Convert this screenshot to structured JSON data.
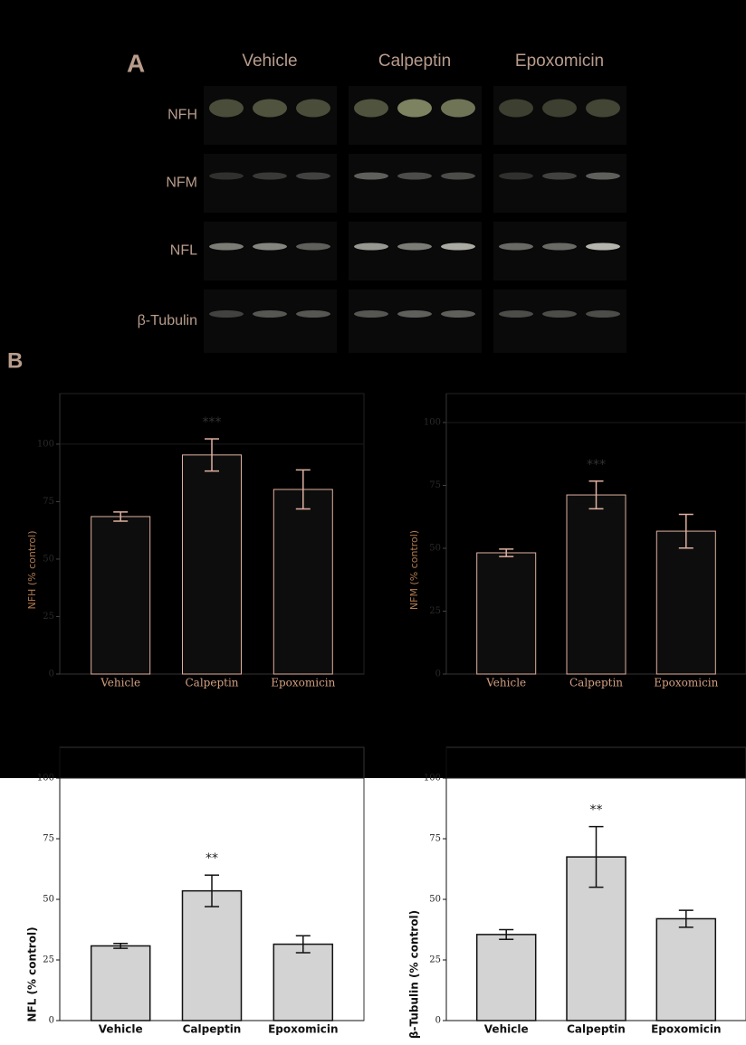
{
  "panel_a": {
    "label": "A",
    "conditions": [
      "Vehicle",
      "Calpeptin",
      "Epoxomicin"
    ],
    "rows": [
      "NFH",
      "NFM",
      "NFL",
      "β-Tubulin"
    ]
  },
  "panel_b_label": "B",
  "chart_data": [
    {
      "type": "bar",
      "ylabel": "NFH (% control)",
      "categories": [
        "Vehicle",
        "Calpeptin",
        "Epoxomicin"
      ],
      "values": [
        68.5,
        95.3,
        80.3
      ],
      "errors": [
        2,
        7,
        8.5
      ],
      "annotations": [
        {
          "text": "***",
          "category": "Calpeptin"
        }
      ],
      "ylim": [
        0,
        122
      ],
      "yticks": [
        0,
        25,
        50,
        75,
        100
      ],
      "reference_line": 100,
      "color": "#0d0d0d",
      "edge_color": "#e0b0a0"
    },
    {
      "type": "bar",
      "ylabel": "NFM (% control)",
      "categories": [
        "Vehicle",
        "Calpeptin",
        "Epoxomicin"
      ],
      "values": [
        48.2,
        71.2,
        56.8
      ],
      "errors": [
        1.5,
        5.5,
        6.7
      ],
      "annotations": [
        {
          "text": "***",
          "category": "Calpeptin"
        }
      ],
      "ylim": [
        0,
        111.5
      ],
      "yticks": [
        0,
        25,
        50,
        75,
        100
      ],
      "reference_line": 100,
      "color": "#0d0d0d",
      "edge_color": "#e0b0a0"
    },
    {
      "type": "bar",
      "ylabel": "NFL (% control)",
      "categories": [
        "Vehicle",
        "Calpeptin",
        "Epoxomicin"
      ],
      "values": [
        30.8,
        53.5,
        31.5
      ],
      "errors": [
        1,
        6.5,
        3.5
      ],
      "annotations": [
        {
          "text": "**",
          "category": "Calpeptin"
        }
      ],
      "ylim": [
        0,
        112.7
      ],
      "yticks": [
        0,
        25,
        50,
        75,
        100
      ],
      "reference_line": 100,
      "color": "#d3d3d3",
      "edge_color": "#111111"
    },
    {
      "type": "bar",
      "ylabel": "β-Tubulin (% control)",
      "categories": [
        "Vehicle",
        "Calpeptin",
        "Epoxomicin"
      ],
      "values": [
        35.5,
        67.5,
        42
      ],
      "errors": [
        2,
        12.5,
        3.5
      ],
      "annotations": [
        {
          "text": "**",
          "category": "Calpeptin"
        }
      ],
      "ylim": [
        0,
        112.7
      ],
      "yticks": [
        0,
        25,
        50,
        75,
        100
      ],
      "reference_line": 100,
      "color": "#d3d3d3",
      "edge_color": "#111111"
    }
  ]
}
